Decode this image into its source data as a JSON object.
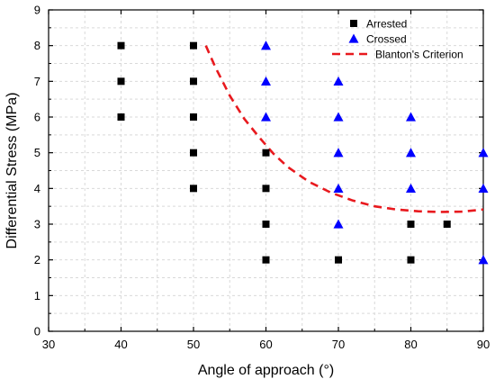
{
  "chart_data": {
    "type": "scatter",
    "xlabel": "Angle of approach (°)",
    "ylabel": "Differential Stress (MPa)",
    "xlim": [
      30,
      90
    ],
    "ylim": [
      0,
      9
    ],
    "xticks": [
      30,
      40,
      50,
      60,
      70,
      80,
      90
    ],
    "yticks": [
      0,
      1,
      2,
      3,
      4,
      5,
      6,
      7,
      8,
      9
    ],
    "grid": true,
    "legend_position": "top-right",
    "series": [
      {
        "name": "Arrested",
        "marker": "square",
        "color": "#000000",
        "points": [
          [
            40,
            6
          ],
          [
            40,
            7
          ],
          [
            40,
            8
          ],
          [
            50,
            4
          ],
          [
            50,
            5
          ],
          [
            50,
            6
          ],
          [
            50,
            7
          ],
          [
            50,
            8
          ],
          [
            60,
            2
          ],
          [
            60,
            3
          ],
          [
            60,
            4
          ],
          [
            60,
            5
          ],
          [
            70,
            2
          ],
          [
            80,
            2
          ],
          [
            80,
            3
          ],
          [
            85,
            3
          ]
        ]
      },
      {
        "name": "Crossed",
        "marker": "triangle",
        "color": "#0000ff",
        "points": [
          [
            60,
            6
          ],
          [
            60,
            7
          ],
          [
            60,
            8
          ],
          [
            70,
            3
          ],
          [
            70,
            4
          ],
          [
            70,
            5
          ],
          [
            70,
            6
          ],
          [
            70,
            7
          ],
          [
            80,
            4
          ],
          [
            80,
            5
          ],
          [
            80,
            6
          ],
          [
            90,
            2
          ],
          [
            90,
            4
          ],
          [
            90,
            5
          ]
        ]
      },
      {
        "name": "Blanton's Criterion",
        "line": "dashed",
        "color": "#e8191e",
        "points": [
          [
            51.7,
            8.0
          ],
          [
            53,
            7.4
          ],
          [
            55,
            6.6
          ],
          [
            57,
            5.95
          ],
          [
            59,
            5.45
          ],
          [
            61,
            4.98
          ],
          [
            63,
            4.6
          ],
          [
            66,
            4.18
          ],
          [
            69,
            3.88
          ],
          [
            72,
            3.66
          ],
          [
            75,
            3.5
          ],
          [
            78,
            3.41
          ],
          [
            81,
            3.36
          ],
          [
            84,
            3.34
          ],
          [
            87,
            3.35
          ],
          [
            90,
            3.41
          ]
        ]
      }
    ]
  }
}
